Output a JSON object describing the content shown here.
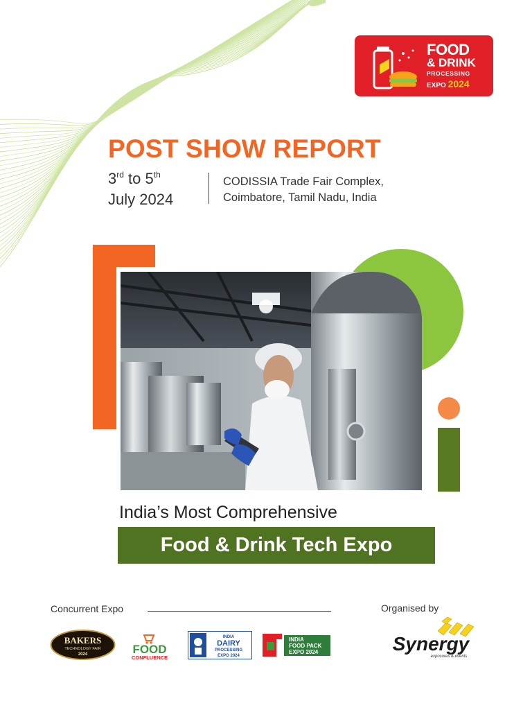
{
  "header": {
    "event_logo": {
      "line1": "FOOD",
      "line2": "& DRINK",
      "line3": "PROCESSING",
      "line4_prefix": "EXPO",
      "line4_year": "2024",
      "bg_color": "#e02026"
    },
    "report_title": "POST SHOW REPORT",
    "dates": {
      "start_day": "3",
      "start_suffix": "rd",
      "to": "to",
      "end_day": "5",
      "end_suffix": "th",
      "month_year": "July 2024"
    },
    "venue": {
      "line1": "CODISSIA Trade Fair Complex,",
      "line2": "Coimbatore, Tamil Nadu, India"
    }
  },
  "hero": {
    "photo_subject": "food-processing-worker-with-tablet",
    "accent_orange": "#f26522",
    "accent_green": "#8cc63f",
    "accent_dark_green": "#4f7321"
  },
  "tagline": {
    "line1": "India’s Most Comprehensive",
    "box": "Food & Drink Tech Expo"
  },
  "footer": {
    "concurrent_label": "Concurrent Expo",
    "organised_label": "Organised by",
    "logos": {
      "bakers": {
        "name": "BAKERS",
        "sub": "TECHNOLOGY FAIR",
        "year": "2024"
      },
      "confluence": {
        "word1": "FOOD",
        "word2": "CONFLUENCE"
      },
      "dairy": {
        "top": "INDIA",
        "line1": "DAIRY",
        "line2": "PROCESSING",
        "line3": "EXPO 2024"
      },
      "pack": {
        "line1": "INDIA",
        "line2": "FOOD PACK",
        "line3": "EXPO  2024"
      },
      "synergy": {
        "name": "Synergy",
        "tagline": "exposures & events"
      }
    }
  }
}
